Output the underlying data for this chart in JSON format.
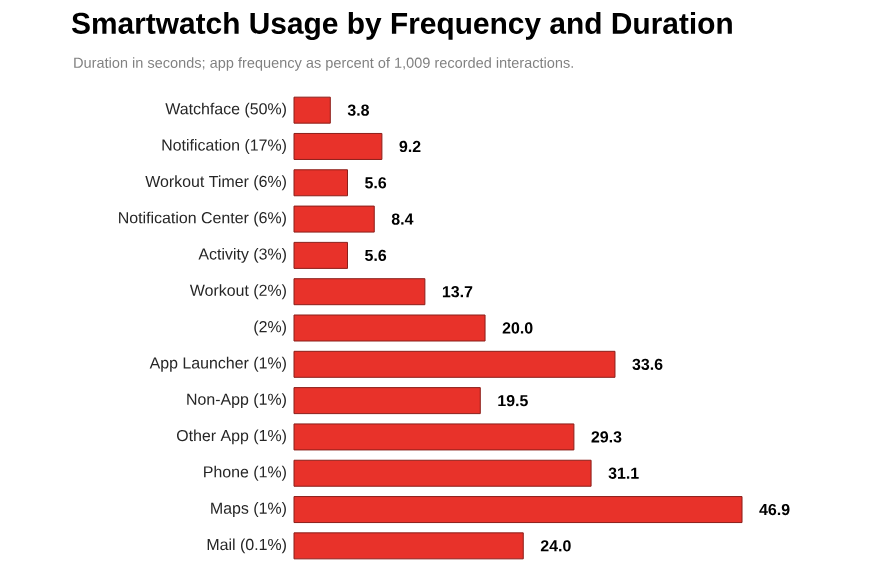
{
  "chart_data": {
    "type": "bar",
    "orientation": "horizontal",
    "title": "Smartwatch Usage by Frequency and Duration",
    "subtitle": "Duration in seconds; app frequency as percent of 1,009 recorded interactions.",
    "categories": [
      "Watchface (50%)",
      "Notification (17%)",
      "Workout Timer (6%)",
      "Notification Center (6%)",
      "Activity (3%)",
      "Workout (2%)",
      "(2%)",
      "App Launcher (1%)",
      "Non-App (1%)",
      "Other App (1%)",
      "Phone (1%)",
      "Maps (1%)",
      "Mail (0.1%)"
    ],
    "values": [
      3.8,
      9.2,
      5.6,
      8.4,
      5.6,
      13.7,
      20.0,
      33.6,
      19.5,
      29.3,
      31.1,
      46.9,
      24.0
    ],
    "value_labels": [
      "3.8",
      "9.2",
      "5.6",
      "8.4",
      "5.6",
      "13.7",
      "20.0",
      "33.6",
      "19.5",
      "29.3",
      "31.1",
      "46.9",
      "24.0"
    ],
    "color": "#e8322a"
  }
}
